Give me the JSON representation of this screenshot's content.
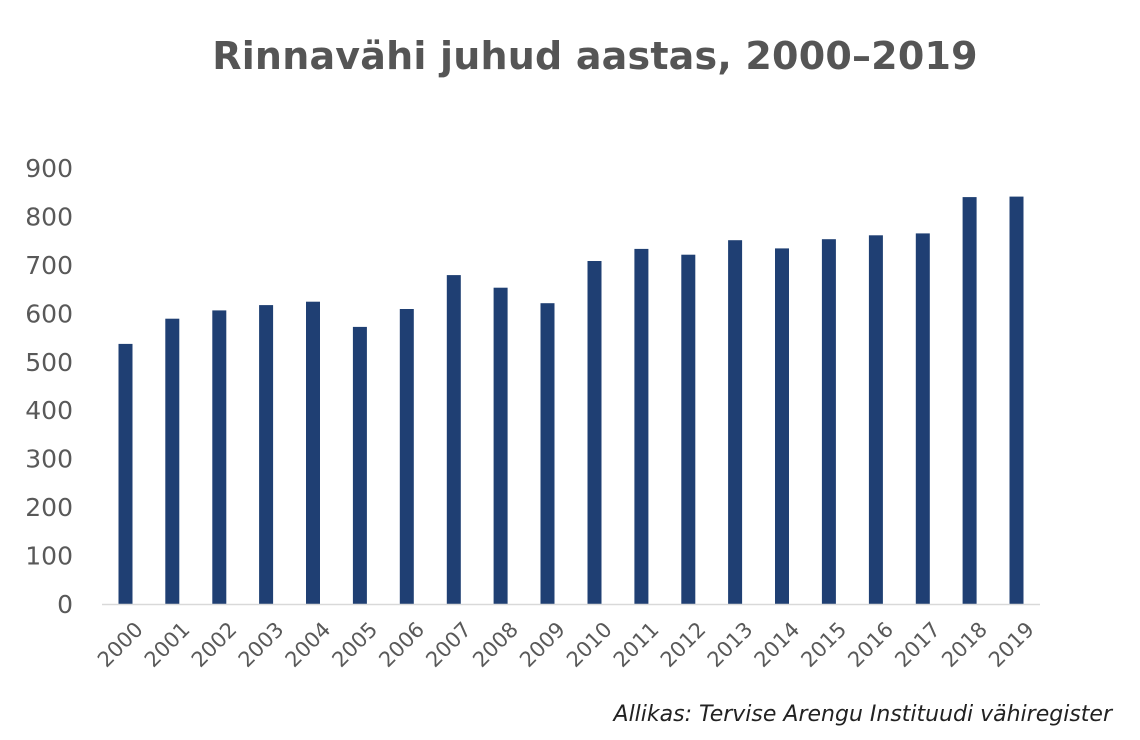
{
  "chart_data": {
    "type": "bar",
    "title": "Rinnavähi juhud aastas, 2000–2019",
    "categories": [
      "2000",
      "2001",
      "2002",
      "2003",
      "2004",
      "2005",
      "2006",
      "2007",
      "2008",
      "2009",
      "2010",
      "2011",
      "2012",
      "2013",
      "2014",
      "2015",
      "2016",
      "2017",
      "2018",
      "2019"
    ],
    "values": [
      537,
      589,
      606,
      617,
      624,
      572,
      609,
      679,
      653,
      621,
      708,
      733,
      721,
      751,
      734,
      753,
      761,
      765,
      840,
      841
    ],
    "ylim": [
      0,
      900
    ],
    "yticks": [
      "0",
      "100",
      "200",
      "300",
      "400",
      "500",
      "600",
      "700",
      "800",
      "900"
    ],
    "xlabel": "",
    "ylabel": "",
    "grid": false,
    "bar_color": "#1f3f73",
    "axis_color": "#d9d9d9",
    "source": "Allikas: Tervise Arengu Instituudi vähiregister"
  }
}
